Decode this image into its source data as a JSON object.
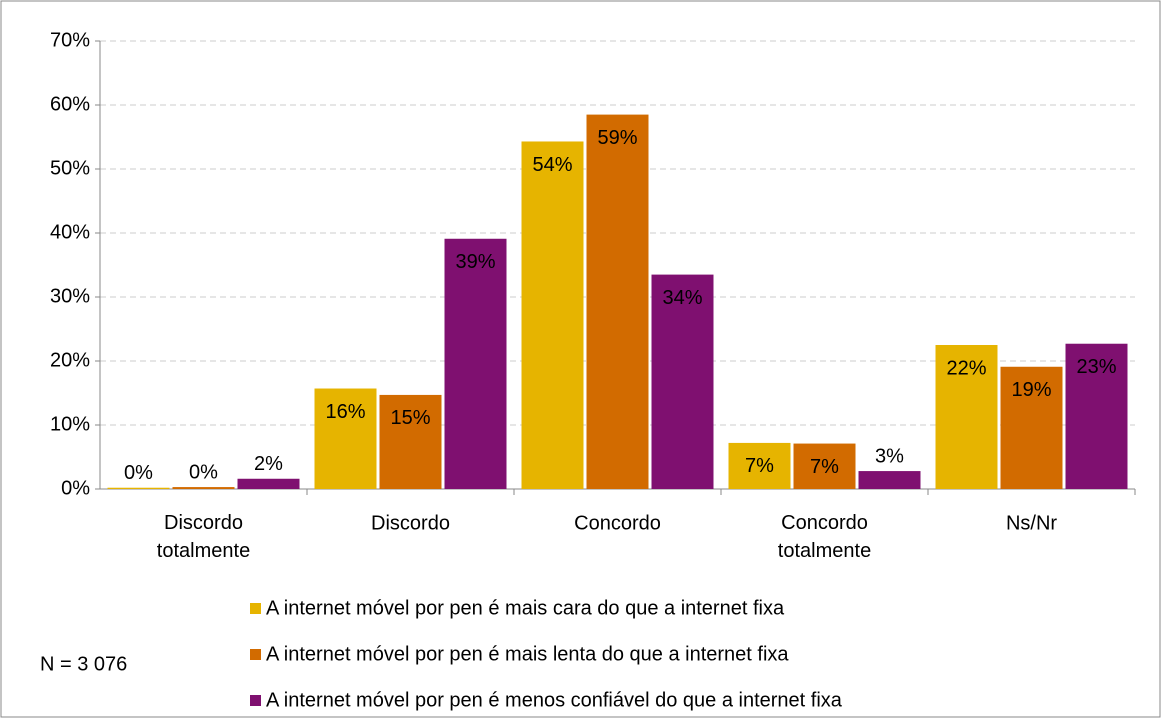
{
  "chart_data": {
    "type": "bar",
    "categories": [
      "Discordo totalmente",
      "Discordo",
      "Concordo",
      "Concordo totalmente",
      "Ns/Nr"
    ],
    "series": [
      {
        "name": "A internet móvel por pen é mais cara do que a internet fixa",
        "color": "#e6b400",
        "values": [
          0.2,
          15.7,
          54.3,
          7.2,
          22.5
        ],
        "value_labels": [
          "0%",
          "16%",
          "54%",
          "7%",
          "22%"
        ]
      },
      {
        "name": "A internet móvel por pen é mais lenta do que a internet fixa",
        "color": "#d26b00",
        "values": [
          0.3,
          14.7,
          58.5,
          7.1,
          19.1
        ],
        "value_labels": [
          "0%",
          "15%",
          "59%",
          "7%",
          "19%"
        ]
      },
      {
        "name": "A internet móvel por pen é menos confiável do que a internet fixa",
        "color": "#7f1070",
        "values": [
          1.6,
          39.1,
          33.5,
          2.8,
          22.7
        ],
        "value_labels": [
          "2%",
          "39%",
          "34%",
          "3%",
          "23%"
        ]
      }
    ],
    "ylim": [
      0,
      70
    ],
    "yticks": [
      {
        "value": 0,
        "label": "0%"
      },
      {
        "value": 10,
        "label": "10%"
      },
      {
        "value": 20,
        "label": "20%"
      },
      {
        "value": 30,
        "label": "30%"
      },
      {
        "value": 40,
        "label": "40%"
      },
      {
        "value": 50,
        "label": "50%"
      },
      {
        "value": 60,
        "label": "60%"
      },
      {
        "value": 70,
        "label": "70%"
      }
    ],
    "grid": true,
    "annotation": "N = 3 076"
  }
}
